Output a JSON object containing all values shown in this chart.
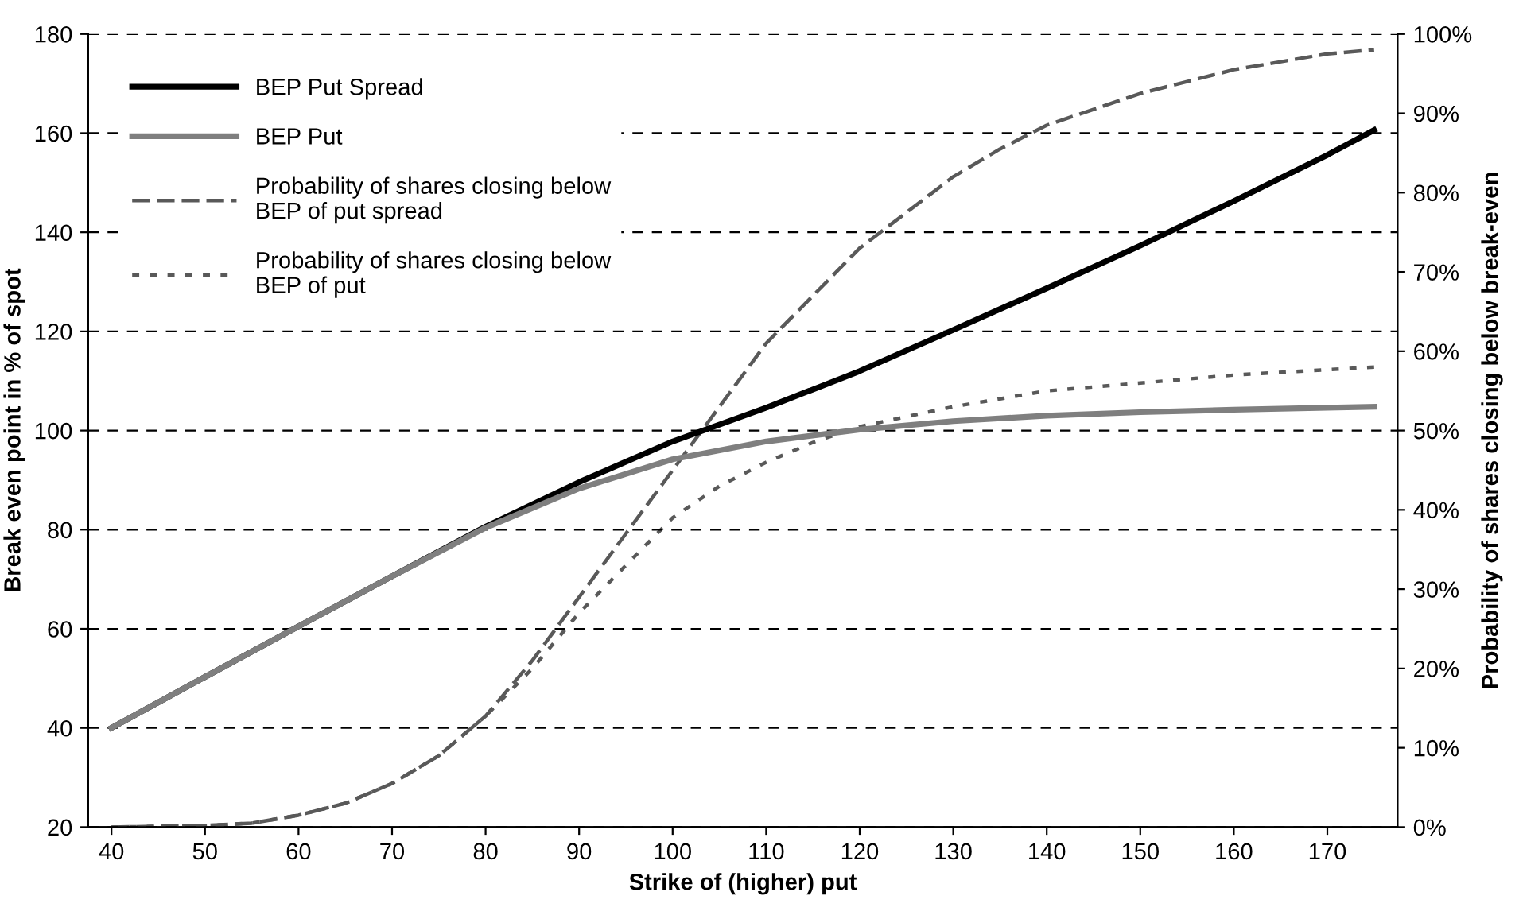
{
  "chart_data": {
    "type": "line",
    "xlabel": "Strike of (higher) put",
    "ylabel": "Break even point in % of spot",
    "y2label": "Probability of shares closing below break-even",
    "x": [
      40,
      50,
      60,
      70,
      80,
      90,
      100,
      110,
      120,
      130,
      140,
      150,
      160,
      170,
      175
    ],
    "series": [
      {
        "name": "BEP Put Spread",
        "color": "#000000",
        "line_style": "solid",
        "values": [
          40,
          50.3,
          60.5,
          70.6,
          80.6,
          89.6,
          97.8,
          104.6,
          112,
          120.3,
          128.7,
          137.3,
          146.3,
          155.6,
          160.6
        ]
      },
      {
        "name": "BEP Put",
        "color": "#7f7f7f",
        "line_style": "solid",
        "values": [
          40,
          50.3,
          60.5,
          70.6,
          80.4,
          88.3,
          94.2,
          97.8,
          100.2,
          101.9,
          103,
          103.7,
          104.2,
          104.6,
          104.8
        ]
      },
      {
        "name": "Probability of shares closing below\nBEP of put spread",
        "color": "#595959",
        "line_style": "dashed",
        "axis": "y2",
        "x": [
          40,
          50,
          55,
          60,
          65,
          70,
          75,
          80,
          85,
          90,
          95,
          100,
          105,
          110,
          115,
          120,
          125,
          130,
          135,
          140,
          145,
          150,
          160,
          170,
          175
        ],
        "values": [
          0,
          0.2,
          0.5,
          1.5,
          3,
          5.5,
          9,
          14,
          21,
          29,
          37,
          45,
          53,
          61,
          67,
          73,
          77.5,
          82,
          85.5,
          88.5,
          90.5,
          92.5,
          95.5,
          97.5,
          98
        ]
      },
      {
        "name": "Probability of shares closing below\nBEP of put",
        "color": "#595959",
        "line_style": "dotted",
        "axis": "y2",
        "x": [
          40,
          50,
          55,
          60,
          65,
          70,
          75,
          80,
          85,
          90,
          95,
          100,
          105,
          110,
          115,
          120,
          130,
          140,
          150,
          160,
          175
        ],
        "values": [
          0,
          0.2,
          0.5,
          1.5,
          3,
          5.5,
          9,
          14,
          20,
          27,
          33,
          39,
          43,
          46,
          48.5,
          50.5,
          53,
          55,
          56,
          57,
          58
        ]
      }
    ],
    "xlim": [
      37.5,
      177.5
    ],
    "xticks": [
      40,
      50,
      60,
      70,
      80,
      90,
      100,
      110,
      120,
      130,
      140,
      150,
      160,
      170
    ],
    "ylim": [
      20,
      180
    ],
    "yticks": [
      20,
      40,
      60,
      80,
      100,
      120,
      140,
      160,
      180
    ],
    "y2lim": [
      0,
      100
    ],
    "y2ticks": [
      {
        "value": 0,
        "label": "0%"
      },
      {
        "value": 10,
        "label": "10%"
      },
      {
        "value": 20,
        "label": "20%"
      },
      {
        "value": 30,
        "label": "30%"
      },
      {
        "value": 40,
        "label": "40%"
      },
      {
        "value": 50,
        "label": "50%"
      },
      {
        "value": 60,
        "label": "60%"
      },
      {
        "value": 70,
        "label": "70%"
      },
      {
        "value": 80,
        "label": "80%"
      },
      {
        "value": 90,
        "label": "90%"
      },
      {
        "value": 100,
        "label": "100%"
      }
    ],
    "grid": "y",
    "legend": "top left",
    "marker": "none"
  }
}
